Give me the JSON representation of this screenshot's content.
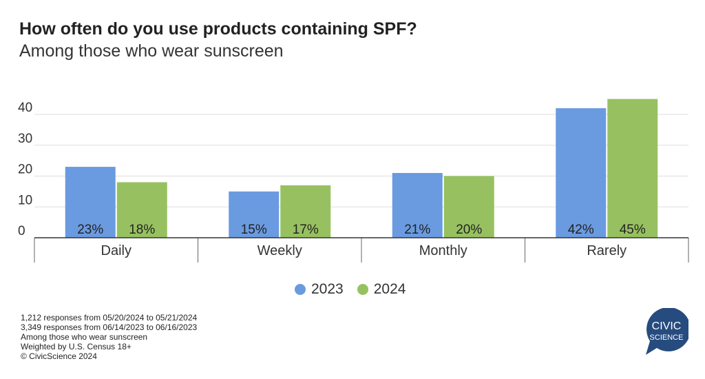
{
  "header": {
    "title": "How often do you use products containing SPF?",
    "subtitle": "Among those who wear sunscreen"
  },
  "chart_data": {
    "type": "bar",
    "categories": [
      "Daily",
      "Weekly",
      "Monthly",
      "Rarely"
    ],
    "series": [
      {
        "name": "2023",
        "values": [
          23,
          15,
          21,
          42
        ],
        "labels": [
          "23%",
          "15%",
          "21%",
          "42%"
        ],
        "color": "#6A9BE0"
      },
      {
        "name": "2024",
        "values": [
          18,
          17,
          20,
          45
        ],
        "labels": [
          "18%",
          "17%",
          "20%",
          "45%"
        ],
        "color": "#97C160"
      }
    ],
    "yticks": [
      "0",
      "10",
      "20",
      "30",
      "40"
    ],
    "ylim": [
      0,
      45
    ],
    "grid": true,
    "legend": "bottom"
  },
  "footer": {
    "notes": [
      "1,212 responses from 05/20/2024 to 05/21/2024",
      "3,349 responses from 06/14/2023 to 06/16/2023",
      "Among those who wear sunscreen",
      "Weighted by U.S. Census 18+",
      "© CivicScience 2024"
    ]
  },
  "logo": {
    "text": "CIVIC SCIENCE",
    "color": "#264B7E"
  }
}
